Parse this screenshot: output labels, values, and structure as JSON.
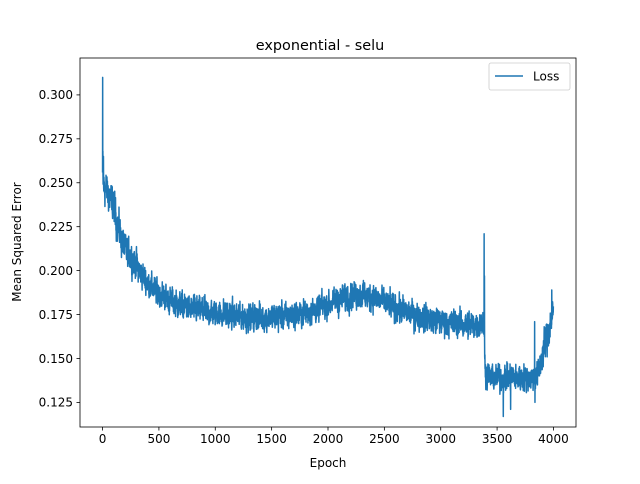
{
  "chart_data": {
    "type": "line",
    "title": "exponential - selu",
    "xlabel": "Epoch",
    "ylabel": "Mean Squared Error",
    "xlim": [
      -200,
      4200
    ],
    "ylim": [
      0.111,
      0.321
    ],
    "x_ticks": [
      0,
      500,
      1000,
      1500,
      2000,
      2500,
      3000,
      3500,
      4000
    ],
    "y_ticks": [
      0.125,
      0.15,
      0.175,
      0.2,
      0.225,
      0.25,
      0.275,
      0.3
    ],
    "y_tick_labels": [
      "0.125",
      "0.150",
      "0.175",
      "0.200",
      "0.225",
      "0.250",
      "0.275",
      "0.300"
    ],
    "legend": {
      "placement": "upper right",
      "entries": [
        "Loss"
      ]
    },
    "grid": false,
    "series": [
      {
        "name": "Loss",
        "color": "#1f77b4",
        "n_points": 4000,
        "trend": {
          "x": [
            0,
            5,
            20,
            50,
            100,
            150,
            200,
            300,
            400,
            500,
            600,
            700,
            800,
            900,
            1000,
            1200,
            1400,
            1600,
            1800,
            1900,
            2000,
            2100,
            2200,
            2300,
            2400,
            2500,
            2600,
            2700,
            2800,
            3000,
            3200,
            3380,
            3400,
            3450,
            3500,
            3600,
            3700,
            3800,
            3860,
            3900,
            3950,
            3990
          ],
          "y": [
            0.255,
            0.25,
            0.247,
            0.244,
            0.236,
            0.222,
            0.212,
            0.203,
            0.193,
            0.187,
            0.183,
            0.18,
            0.178,
            0.177,
            0.176,
            0.174,
            0.173,
            0.174,
            0.176,
            0.178,
            0.181,
            0.183,
            0.186,
            0.186,
            0.185,
            0.182,
            0.179,
            0.176,
            0.174,
            0.171,
            0.169,
            0.17,
            0.141,
            0.139,
            0.139,
            0.139,
            0.139,
            0.139,
            0.14,
            0.152,
            0.164,
            0.176
          ]
        },
        "noise_amplitude": {
          "x": [
            0,
            100,
            200,
            400,
            3380,
            3400,
            3860,
            3900,
            4000
          ],
          "y": [
            0.008,
            0.008,
            0.007,
            0.006,
            0.006,
            0.006,
            0.006,
            0.008,
            0.008
          ]
        },
        "spikes": [
          {
            "x": 1,
            "y": 0.31
          },
          {
            "x": 3,
            "y": 0.268
          },
          {
            "x": 8,
            "y": 0.265
          },
          {
            "x": 3385,
            "y": 0.221
          },
          {
            "x": 3388,
            "y": 0.197
          },
          {
            "x": 3555,
            "y": 0.117
          },
          {
            "x": 3620,
            "y": 0.121
          },
          {
            "x": 3833,
            "y": 0.171
          },
          {
            "x": 3836,
            "y": 0.125
          },
          {
            "x": 3985,
            "y": 0.189
          }
        ]
      }
    ]
  }
}
